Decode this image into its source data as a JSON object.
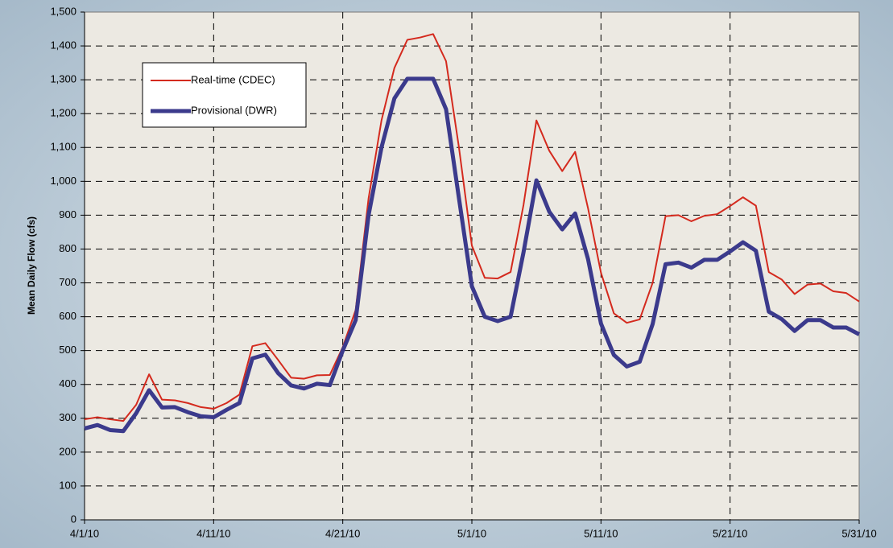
{
  "chart_data": {
    "type": "line",
    "y_label": "Mean Daily Flow (cfs)",
    "categories": [
      "4/1/10",
      null,
      null,
      null,
      null,
      null,
      null,
      null,
      null,
      null,
      "4/11/10",
      null,
      null,
      null,
      null,
      null,
      null,
      null,
      null,
      null,
      "4/21/10",
      null,
      null,
      null,
      null,
      null,
      null,
      null,
      null,
      null,
      "5/1/10",
      null,
      null,
      null,
      null,
      null,
      null,
      null,
      null,
      null,
      "5/11/10",
      null,
      null,
      null,
      null,
      null,
      null,
      null,
      null,
      null,
      "5/21/10",
      null,
      null,
      null,
      null,
      null,
      null,
      null,
      null,
      null,
      "5/31/10"
    ],
    "series": [
      {
        "name": "Real-time (CDEC)",
        "color": "#d42a1e",
        "width": 2,
        "values": [
          297,
          303,
          297,
          292,
          340,
          430,
          355,
          353,
          345,
          333,
          328,
          345,
          370,
          513,
          522,
          472,
          420,
          417,
          427,
          428,
          510,
          620,
          950,
          1180,
          1335,
          1418,
          1425,
          1435,
          1355,
          1100,
          810,
          715,
          713,
          732,
          930,
          1180,
          1090,
          1030,
          1087,
          920,
          730,
          610,
          582,
          592,
          700,
          897,
          900,
          882,
          898,
          903,
          927,
          953,
          928,
          732,
          710,
          667,
          695,
          698,
          675,
          670,
          645
        ]
      },
      {
        "name": "Provisional (DWR)",
        "color": "#3b3a8c",
        "width": 5,
        "values": [
          270,
          280,
          265,
          262,
          315,
          383,
          332,
          333,
          318,
          306,
          303,
          325,
          345,
          477,
          488,
          433,
          397,
          388,
          402,
          398,
          500,
          590,
          900,
          1100,
          1245,
          1303,
          1303,
          1303,
          1213,
          950,
          690,
          600,
          587,
          600,
          790,
          1003,
          910,
          858,
          905,
          770,
          580,
          487,
          453,
          467,
          578,
          755,
          760,
          745,
          768,
          768,
          793,
          820,
          795,
          615,
          593,
          558,
          590,
          590,
          568,
          568,
          548
        ]
      }
    ],
    "ylim": [
      0,
      1500
    ],
    "yticks": [
      0,
      100,
      200,
      300,
      400,
      500,
      600,
      700,
      800,
      900,
      {
        "value": 1000,
        "label": "1,000"
      },
      {
        "value": 1100,
        "label": "1,100"
      },
      {
        "value": 1200,
        "label": "1,200"
      },
      {
        "value": 1300,
        "label": "1,300"
      },
      {
        "value": 1400,
        "label": "1,400"
      },
      {
        "value": 1500,
        "label": "1,500"
      }
    ],
    "grid": true,
    "legend_position": "upper left"
  }
}
